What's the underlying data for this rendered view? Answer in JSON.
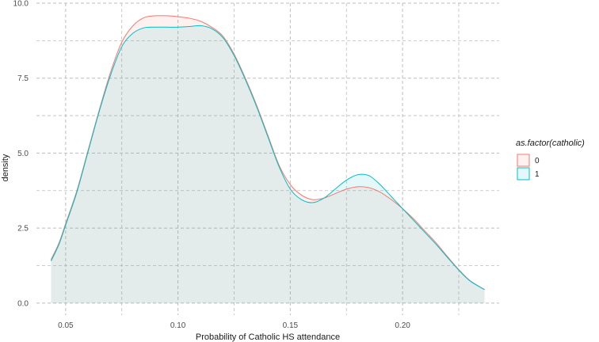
{
  "chart_data": {
    "type": "area",
    "title": "",
    "xlabel": "Probability of Catholic HS attendance",
    "ylabel": "density",
    "xlim": [
      0.037,
      0.243
    ],
    "ylim": [
      -0.4,
      10.0
    ],
    "x_ticks": [
      0.05,
      0.1,
      0.15,
      0.2
    ],
    "x_tick_labels": [
      "0.05",
      "0.10",
      "0.15",
      "0.20"
    ],
    "y_ticks": [
      0.0,
      2.5,
      5.0,
      7.5,
      10.0
    ],
    "y_tick_labels": [
      "0.0",
      "2.5",
      "5.0",
      "7.5",
      "10.0"
    ],
    "grid": true,
    "grid_style": "dashed",
    "legend": {
      "title": "as.factor(catholic)",
      "position": "right"
    },
    "series": [
      {
        "name": "0",
        "color": "#F8766D",
        "fill": "#F8766D",
        "x": [
          0.0435,
          0.047,
          0.05,
          0.055,
          0.06,
          0.065,
          0.07,
          0.075,
          0.08,
          0.085,
          0.09,
          0.095,
          0.1,
          0.105,
          0.11,
          0.115,
          0.12,
          0.125,
          0.13,
          0.135,
          0.14,
          0.145,
          0.15,
          0.155,
          0.16,
          0.165,
          0.17,
          0.175,
          0.18,
          0.185,
          0.19,
          0.195,
          0.2,
          0.205,
          0.21,
          0.215,
          0.22,
          0.225,
          0.23,
          0.2365
        ],
        "y": [
          1.45,
          2.0,
          2.65,
          3.75,
          5.1,
          6.45,
          7.7,
          8.7,
          9.25,
          9.52,
          9.58,
          9.58,
          9.55,
          9.5,
          9.4,
          9.2,
          8.9,
          8.3,
          7.5,
          6.6,
          5.6,
          4.6,
          3.95,
          3.6,
          3.45,
          3.5,
          3.65,
          3.8,
          3.88,
          3.85,
          3.7,
          3.45,
          3.15,
          2.8,
          2.4,
          2.0,
          1.55,
          1.12,
          0.75,
          0.45
        ]
      },
      {
        "name": "1",
        "color": "#00BFC4",
        "fill": "#00BFC4",
        "x": [
          0.0435,
          0.047,
          0.05,
          0.055,
          0.06,
          0.065,
          0.07,
          0.075,
          0.08,
          0.085,
          0.09,
          0.095,
          0.1,
          0.105,
          0.11,
          0.115,
          0.12,
          0.125,
          0.13,
          0.135,
          0.14,
          0.145,
          0.15,
          0.155,
          0.16,
          0.165,
          0.17,
          0.175,
          0.18,
          0.185,
          0.19,
          0.195,
          0.2,
          0.205,
          0.21,
          0.215,
          0.22,
          0.225,
          0.23,
          0.2365
        ],
        "y": [
          1.4,
          1.95,
          2.6,
          3.7,
          5.05,
          6.4,
          7.6,
          8.55,
          9.0,
          9.18,
          9.2,
          9.2,
          9.2,
          9.22,
          9.25,
          9.15,
          8.85,
          8.25,
          7.45,
          6.55,
          5.55,
          4.55,
          3.8,
          3.45,
          3.35,
          3.5,
          3.8,
          4.1,
          4.28,
          4.25,
          3.95,
          3.55,
          3.15,
          2.75,
          2.35,
          1.95,
          1.52,
          1.1,
          0.74,
          0.45
        ]
      }
    ]
  }
}
